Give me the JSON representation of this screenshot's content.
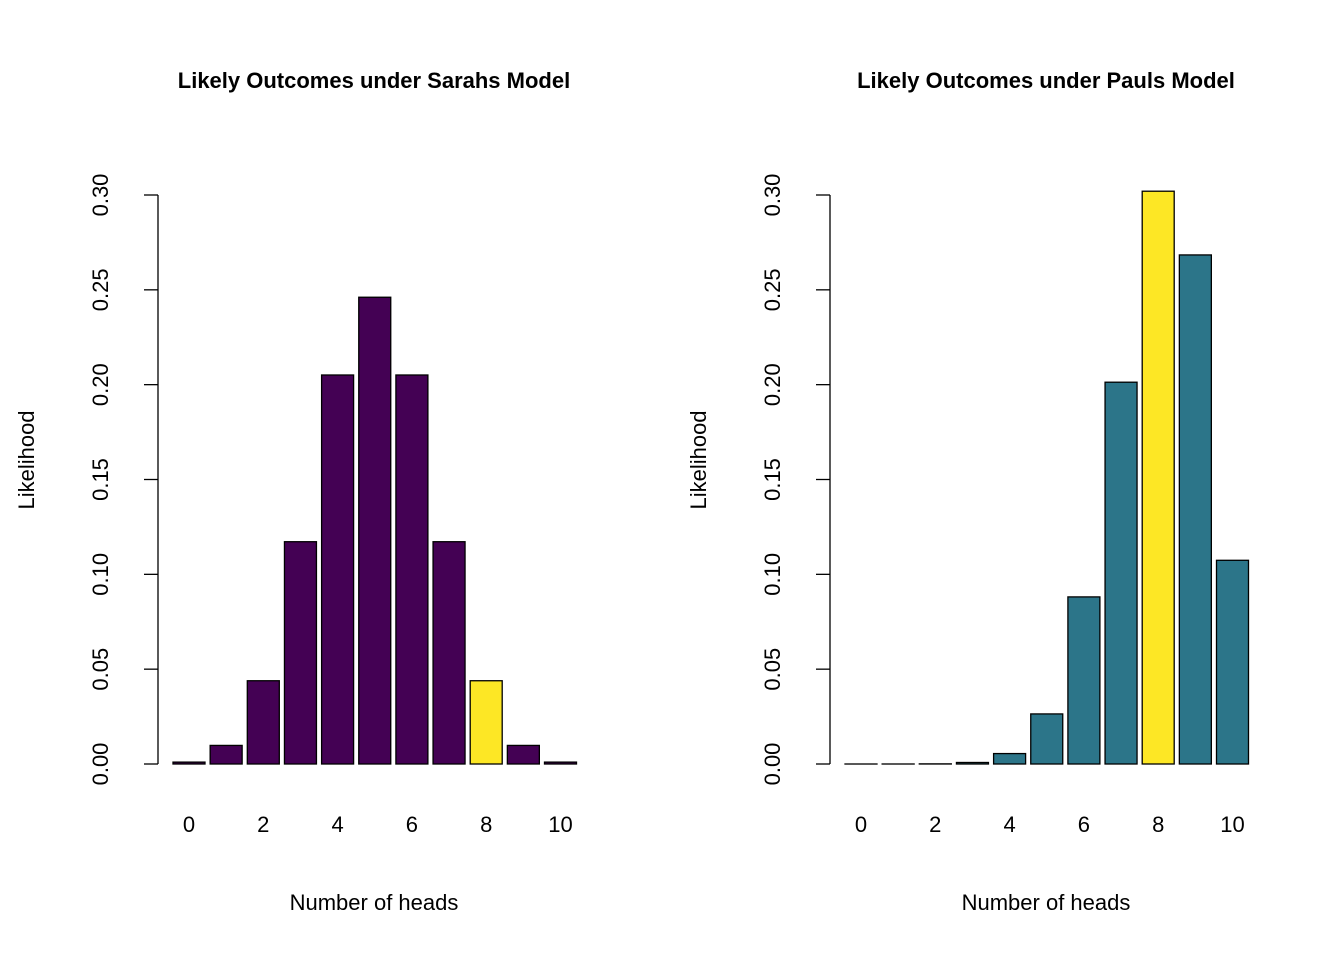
{
  "chart_data": [
    {
      "type": "bar",
      "title": "Likely Outcomes under Sarahs Model",
      "xlabel": "Number of heads",
      "ylabel": "Likelihood",
      "categories": [
        0,
        1,
        2,
        3,
        4,
        5,
        6,
        7,
        8,
        9,
        10
      ],
      "x_tick_labels": [
        "0",
        "2",
        "4",
        "6",
        "8",
        "10"
      ],
      "y_tick_labels": [
        "0.00",
        "0.05",
        "0.10",
        "0.15",
        "0.20",
        "0.25",
        "0.30"
      ],
      "ylim": [
        0,
        0.3
      ],
      "values": [
        0.001,
        0.0098,
        0.0439,
        0.1172,
        0.2051,
        0.2461,
        0.2051,
        0.1172,
        0.0439,
        0.0098,
        0.001
      ],
      "highlight_index": 8,
      "bar_color": "#440154",
      "highlight_color": "#FDE725",
      "grid": false
    },
    {
      "type": "bar",
      "title": "Likely Outcomes under Pauls Model",
      "xlabel": "Number of heads",
      "ylabel": "Likelihood",
      "categories": [
        0,
        1,
        2,
        3,
        4,
        5,
        6,
        7,
        8,
        9,
        10
      ],
      "x_tick_labels": [
        "0",
        "2",
        "4",
        "6",
        "8",
        "10"
      ],
      "y_tick_labels": [
        "0.00",
        "0.05",
        "0.10",
        "0.15",
        "0.20",
        "0.25",
        "0.30"
      ],
      "ylim": [
        0,
        0.3
      ],
      "values": [
        1e-07,
        4e-06,
        7.37e-05,
        0.0008,
        0.0055,
        0.0264,
        0.0881,
        0.2013,
        0.302,
        0.2684,
        0.1074
      ],
      "highlight_index": 8,
      "bar_color": "#2C7589",
      "highlight_color": "#FDE725",
      "grid": false
    }
  ]
}
